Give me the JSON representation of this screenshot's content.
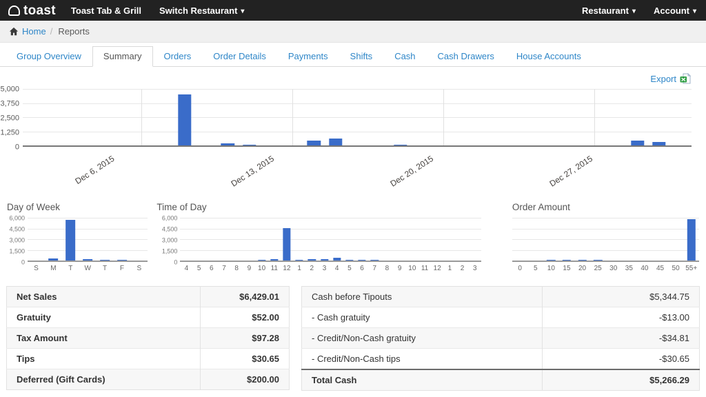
{
  "icons": {
    "caret_down": "▾",
    "toast_logo": "bread-slice",
    "home": "house",
    "export_file": "excel-sheet"
  },
  "colors": {
    "accent_blue": "#2e86c8",
    "bar_blue": "#3a6cc9",
    "topnav_bg": "#222222",
    "stripe": "#f7f7f7"
  },
  "topnav": {
    "logo_text": "toast",
    "restaurant_name": "Toast Tab & Grill",
    "switch_label": "Switch Restaurant",
    "restaurant_menu": "Restaurant",
    "account_menu": "Account"
  },
  "breadcrumb": {
    "home": "Home",
    "separator": "/",
    "current": "Reports"
  },
  "tabs": [
    {
      "label": "Group Overview",
      "active": false
    },
    {
      "label": "Summary",
      "active": true
    },
    {
      "label": "Orders",
      "active": false
    },
    {
      "label": "Order Details",
      "active": false
    },
    {
      "label": "Payments",
      "active": false
    },
    {
      "label": "Shifts",
      "active": false
    },
    {
      "label": "Cash",
      "active": false
    },
    {
      "label": "Cash Drawers",
      "active": false
    },
    {
      "label": "House Accounts",
      "active": false
    }
  ],
  "export_label": "Export",
  "chart_data": [
    {
      "type": "bar",
      "name": "net-sales-by-day",
      "title": "",
      "x_range": "Dec 1 - Dec 31, 2015 (daily)",
      "values": [
        0,
        0,
        0,
        0,
        0,
        0,
        0,
        4400,
        0,
        170,
        80,
        0,
        0,
        420,
        625,
        0,
        0,
        90,
        0,
        0,
        0,
        0,
        0,
        0,
        0,
        0,
        0,
        0,
        420,
        270,
        0
      ],
      "ylim": [
        0,
        5000
      ],
      "yticks": [
        "5,000",
        "3,750",
        "2,500",
        "1,250",
        "0"
      ],
      "week_ticks": [
        {
          "i": 5,
          "label": "Dec 6, 2015"
        },
        {
          "i": 12,
          "label": "Dec 13, 2015"
        },
        {
          "i": 19,
          "label": "Dec 20, 2015"
        },
        {
          "i": 26,
          "label": "Dec 27, 2015"
        }
      ]
    },
    {
      "type": "bar",
      "name": "day-of-week",
      "title": "Day of Week",
      "categories": [
        "S",
        "M",
        "T",
        "W",
        "T",
        "F",
        "S"
      ],
      "values": [
        0,
        250,
        5500,
        180,
        120,
        120,
        0
      ],
      "ylim": [
        0,
        6000
      ],
      "yticks": [
        "6,000",
        "4,500",
        "3,000",
        "1,500",
        "0"
      ]
    },
    {
      "type": "bar",
      "name": "time-of-day",
      "title": "Time of Day",
      "categories": [
        "4",
        "5",
        "6",
        "7",
        "8",
        "9",
        "10",
        "11",
        "12",
        "1",
        "2",
        "3",
        "4",
        "5",
        "6",
        "7",
        "8",
        "9",
        "10",
        "11",
        "12",
        "1",
        "2",
        "3"
      ],
      "values": [
        0,
        0,
        0,
        0,
        0,
        0,
        60,
        150,
        4450,
        130,
        170,
        190,
        380,
        110,
        70,
        120,
        0,
        0,
        0,
        0,
        0,
        0,
        0,
        0
      ],
      "ylim": [
        0,
        6000
      ],
      "yticks": [
        "6,000",
        "4,500",
        "3,000",
        "1,500",
        "0"
      ]
    },
    {
      "type": "bar",
      "name": "order-amount",
      "title": "Order Amount",
      "categories": [
        "0",
        "5",
        "10",
        "15",
        "20",
        "25",
        "30",
        "35",
        "40",
        "45",
        "50",
        "55+"
      ],
      "values": [
        0,
        0,
        60,
        80,
        60,
        50,
        0,
        0,
        0,
        0,
        0,
        5600
      ],
      "ylim": [
        0,
        6000
      ],
      "yticks": []
    }
  ],
  "tables": {
    "sales": {
      "rows": [
        {
          "label": "Net Sales",
          "value": "$6,429.01",
          "bold": true,
          "total": false
        },
        {
          "label": "Gratuity",
          "value": "$52.00",
          "bold": true,
          "total": false
        },
        {
          "label": "Tax Amount",
          "value": "$97.28",
          "bold": true,
          "total": false
        },
        {
          "label": "Tips",
          "value": "$30.65",
          "bold": true,
          "total": false
        },
        {
          "label": "Deferred (Gift Cards)",
          "value": "$200.00",
          "bold": true,
          "total": false
        }
      ]
    },
    "cash": {
      "rows": [
        {
          "label": "Cash before Tipouts",
          "value": "$5,344.75",
          "bold": false,
          "total": false
        },
        {
          "label": "- Cash gratuity",
          "value": "-$13.00",
          "bold": false,
          "total": false
        },
        {
          "label": "- Credit/Non-Cash gratuity",
          "value": "-$34.81",
          "bold": false,
          "total": false
        },
        {
          "label": "- Credit/Non-Cash tips",
          "value": "-$30.65",
          "bold": false,
          "total": false
        },
        {
          "label": "Total Cash",
          "value": "$5,266.29",
          "bold": true,
          "total": true
        }
      ]
    }
  }
}
